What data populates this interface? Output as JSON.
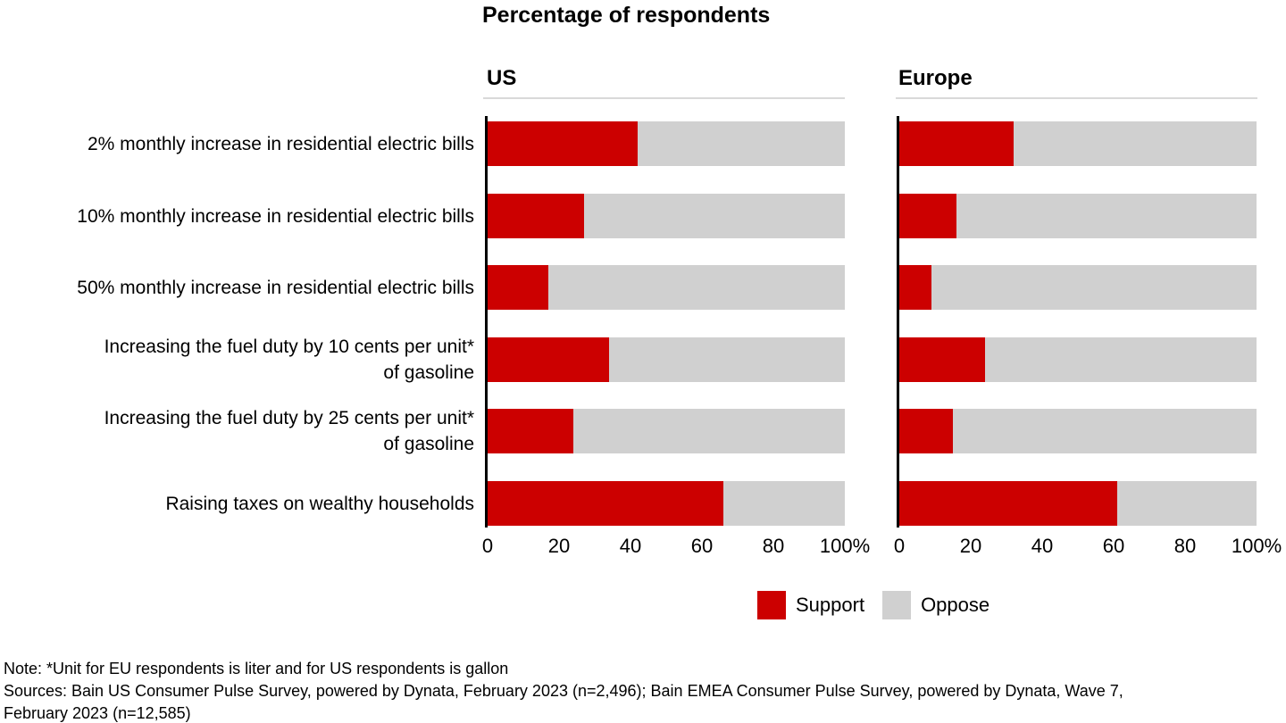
{
  "chart_data": {
    "type": "bar",
    "orientation": "horizontal",
    "stacked": true,
    "unit": "%",
    "title": "Percentage of respondents",
    "categories": [
      "2% monthly increase in residential electric bills",
      "10% monthly increase in residential electric bills",
      "50% monthly increase in residential electric bills",
      "Increasing the fuel duty by 10 cents per unit*\nof gasoline",
      "Increasing the fuel duty by 25 cents per unit*\nof gasoline",
      "Raising taxes on wealthy households"
    ],
    "panels": [
      {
        "name": "US",
        "series": [
          {
            "name": "Support",
            "values": [
              42,
              27,
              17,
              34,
              24,
              66
            ]
          },
          {
            "name": "Oppose",
            "values": [
              58,
              73,
              83,
              66,
              76,
              34
            ]
          }
        ]
      },
      {
        "name": "Europe",
        "series": [
          {
            "name": "Support",
            "values": [
              32,
              16,
              9,
              24,
              15,
              61
            ]
          },
          {
            "name": "Oppose",
            "values": [
              68,
              84,
              91,
              76,
              85,
              39
            ]
          }
        ]
      }
    ],
    "x_axis": {
      "range": [
        0,
        100
      ],
      "ticks": [
        "0",
        "20",
        "40",
        "60",
        "80",
        "100%"
      ]
    },
    "legend": [
      {
        "label": "Support",
        "color": "#CC0000"
      },
      {
        "label": "Oppose",
        "color": "#D0D0D0"
      }
    ],
    "legend_position": "bottom",
    "grid": false
  },
  "footer": {
    "note": "Note: *Unit for EU respondents is liter and for US respondents is gallon",
    "sources_lines": [
      "Sources: Bain US Consumer Pulse Survey, powered by Dynata, February 2023 (n=2,496); Bain EMEA Consumer Pulse Survey, powered by Dynata, Wave 7,",
      "February 2023 (n=12,585)"
    ]
  },
  "colors": {
    "support_red": "#CC0000",
    "oppose_gray": "#D0D0D0",
    "axis_black": "#000000",
    "header_rule_gray": "#D9D9D9"
  }
}
